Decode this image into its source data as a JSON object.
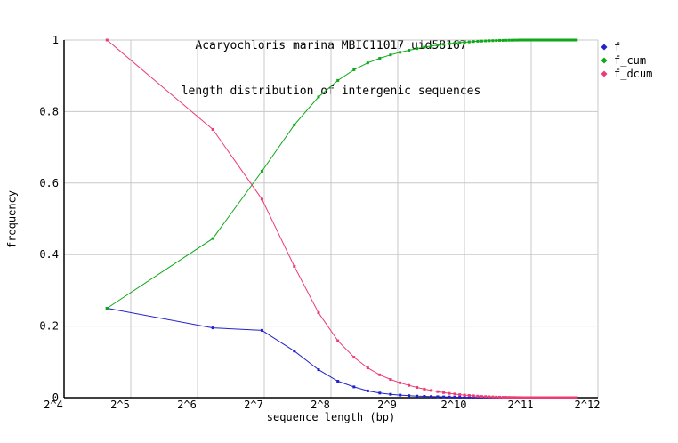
{
  "header": {
    "title_line1": "Acaryochloris marina MBIC11017 uid58167",
    "title_line2": "length distribution of intergenic sequences"
  },
  "axes": {
    "x": {
      "label": "sequence length (bp)",
      "scale": "log2",
      "min_exp": 4,
      "max_exp": 12,
      "ticks": [
        {
          "label": "2^4",
          "exp": 4
        },
        {
          "label": "2^5",
          "exp": 5
        },
        {
          "label": "2^6",
          "exp": 6
        },
        {
          "label": "2^7",
          "exp": 7
        },
        {
          "label": "2^8",
          "exp": 8
        },
        {
          "label": "2^9",
          "exp": 9
        },
        {
          "label": "2^10",
          "exp": 10
        },
        {
          "label": "2^11",
          "exp": 11
        },
        {
          "label": "2^12",
          "exp": 12
        }
      ]
    },
    "y": {
      "label": "frequency",
      "min": 0,
      "max": 1,
      "ticks": [
        {
          "label": "0",
          "value": 0
        },
        {
          "label": "0.2",
          "value": 0.2
        },
        {
          "label": "0.4",
          "value": 0.4
        },
        {
          "label": "0.6",
          "value": 0.6
        },
        {
          "label": "0.8",
          "value": 0.8
        },
        {
          "label": "1",
          "value": 1
        }
      ]
    }
  },
  "legend": {
    "position": "outside-top-right",
    "entries": [
      {
        "label": "f",
        "color": "#2222cc"
      },
      {
        "label": "f_cum",
        "color": "#0ea818"
      },
      {
        "label": "f_dcum",
        "color": "#ec3d72"
      }
    ]
  },
  "colors": {
    "background": "#ffffff",
    "grid": "#c8c8c8",
    "axis": "#000000",
    "text": "#000000"
  },
  "chart_data": {
    "type": "line",
    "title": "Acaryochloris marina MBIC11017 uid58167",
    "subtitle": "length distribution of intergenic sequences",
    "xlabel": "sequence length (bp)",
    "ylabel": "frequency",
    "xscale": "log2",
    "xlim": [
      16,
      4096
    ],
    "ylim": [
      0,
      1
    ],
    "grid": true,
    "legend_position": "outside-top-right",
    "x_bin_centers": [
      25,
      75,
      125,
      175,
      225,
      275,
      325,
      375,
      425,
      475,
      525,
      575,
      625,
      675,
      725,
      775,
      825,
      875,
      925,
      975,
      1025,
      1075,
      1125,
      1175,
      1225,
      1275,
      1325,
      1375,
      1425,
      1475,
      1525,
      1575,
      1625,
      1675,
      1725,
      1775,
      1825,
      1875,
      1925,
      1975,
      2025,
      2075,
      2125,
      2175,
      2225,
      2275,
      2325,
      2375,
      2425,
      2475,
      2525,
      2575,
      2625,
      2675,
      2725,
      2775,
      2825,
      2875,
      2925,
      2975,
      3025,
      3075,
      3125,
      3175,
      3225,
      3275
    ],
    "series": [
      {
        "name": "f",
        "color": "#2222cc",
        "values": [
          0.25,
          0.195,
          0.188,
          0.13,
          0.078,
          0.046,
          0.03,
          0.019,
          0.013,
          0.0095,
          0.0072,
          0.0057,
          0.0046,
          0.0038,
          0.0032,
          0.0027,
          0.0023,
          0.0019,
          0.0016,
          0.0013,
          0.0011,
          0.001,
          0.0008,
          0.0007,
          0.0006,
          0.0005,
          0.0004,
          0.0004,
          0.0003,
          0.0003,
          0.0002,
          0.0002,
          0.0002,
          0.0001,
          0.0001,
          0.0001,
          0.0001,
          0.0001,
          0,
          0,
          0,
          0,
          0,
          0,
          0,
          0,
          0,
          0,
          0,
          0,
          0,
          0,
          0,
          0,
          0,
          0,
          0,
          0,
          0,
          0,
          0,
          0,
          0,
          0,
          0,
          0
        ]
      },
      {
        "name": "f_cum",
        "color": "#0ea818",
        "values": [
          0.25,
          0.445,
          0.633,
          0.763,
          0.841,
          0.887,
          0.917,
          0.936,
          0.949,
          0.9585,
          0.9657,
          0.9714,
          0.976,
          0.9798,
          0.983,
          0.9857,
          0.988,
          0.9899,
          0.9915,
          0.9928,
          0.9939,
          0.9949,
          0.9957,
          0.9964,
          0.997,
          0.9975,
          0.9979,
          0.9983,
          0.9986,
          0.9989,
          0.9991,
          0.9993,
          0.9995,
          0.9996,
          0.9997,
          0.9998,
          0.9999,
          1,
          1,
          1,
          1,
          1,
          1,
          1,
          1,
          1,
          1,
          1,
          1,
          1,
          1,
          1,
          1,
          1,
          1,
          1,
          1,
          1,
          1,
          1,
          1,
          1,
          1,
          1,
          1,
          1
        ]
      },
      {
        "name": "f_dcum",
        "color": "#ec3d72",
        "values": [
          1,
          0.75,
          0.555,
          0.367,
          0.237,
          0.159,
          0.113,
          0.083,
          0.064,
          0.051,
          0.0415,
          0.0343,
          0.0286,
          0.024,
          0.0202,
          0.017,
          0.0143,
          0.012,
          0.0101,
          0.0085,
          0.0072,
          0.0061,
          0.0051,
          0.0043,
          0.0036,
          0.003,
          0.0025,
          0.0021,
          0.0017,
          0.0014,
          0.0011,
          0.0009,
          0.0007,
          0.0005,
          0.0004,
          0.0003,
          0.0002,
          0.0001,
          0.0001,
          0,
          0,
          0,
          0,
          0,
          0,
          0,
          0,
          0,
          0,
          0,
          0,
          0,
          0,
          0,
          0,
          0,
          0,
          0,
          0,
          0,
          0,
          0,
          0,
          0,
          0,
          0
        ]
      }
    ]
  }
}
